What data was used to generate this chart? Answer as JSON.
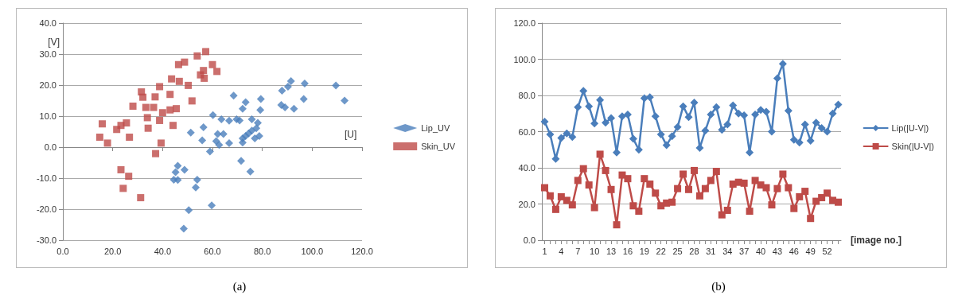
{
  "chart_data": [
    {
      "type": "scatter",
      "xlabel": "[U]",
      "ylabel": "[V]",
      "annotations": [
        "(a)"
      ],
      "xlim": [
        0,
        120
      ],
      "xticks": [
        {
          "value": 0,
          "label": "0.0"
        },
        {
          "value": 20,
          "label": "20.0"
        },
        {
          "value": 40,
          "label": "40.0"
        },
        {
          "value": 60,
          "label": "60.0"
        },
        {
          "value": 80,
          "label": "80.0"
        },
        {
          "value": 100,
          "label": "100.0"
        },
        {
          "value": 120,
          "label": "120.0"
        }
      ],
      "ylim": [
        -30,
        40
      ],
      "yticks": [
        {
          "value": -30,
          "label": "-30.0"
        },
        {
          "value": -20,
          "label": "-20.0"
        },
        {
          "value": -10,
          "label": "-10.0"
        },
        {
          "value": 0,
          "label": "0.0"
        },
        {
          "value": 10,
          "label": "10.0"
        },
        {
          "value": 20,
          "label": "20.0"
        },
        {
          "value": 30,
          "label": "30.0"
        },
        {
          "value": 40,
          "label": "40.0"
        }
      ],
      "grid": "y",
      "legend": "right",
      "series": [
        {
          "name": "Lip_UV",
          "color": "#4a7ebb",
          "marker": "diamond",
          "x": [
            68.5,
            73.3,
            72.1,
            79.4,
            79.2,
            87.9,
            90.3,
            91.5,
            97,
            96.6,
            87.6,
            89.1,
            92.7,
            109.5,
            113,
            60.2,
            56.4,
            51.3,
            55.9,
            62.1,
            61.5,
            62.7,
            59,
            64.4,
            63.6,
            66.7,
            66.7,
            69.7,
            70.9,
            75.8,
            78.2,
            72.1,
            73.3,
            74.5,
            75.8,
            77.6,
            78.8,
            77,
            72.1,
            71.5,
            75.2,
            46.1,
            45.2,
            48.8,
            46.1,
            44.5,
            53.9,
            53.3,
            59.7,
            50.5,
            48.5
          ],
          "values": [
            16.6,
            14.5,
            12.4,
            15.5,
            12,
            18.2,
            19.5,
            21.3,
            20.5,
            15.5,
            13.6,
            12.8,
            12.4,
            19.9,
            15,
            10.3,
            6.4,
            4.7,
            2.2,
            4.2,
            1.9,
            0.7,
            -1.4,
            4.2,
            9,
            8.5,
            1.3,
            9,
            8.6,
            9,
            7.8,
            2.8,
            3.6,
            4.4,
            5.3,
            6.1,
            3.6,
            2.8,
            1.5,
            -4.4,
            -7.9,
            -6,
            -8.1,
            -7.3,
            -10.6,
            -10.5,
            -10.5,
            -13,
            -18.8,
            -20.3,
            -26.3
          ]
        },
        {
          "name": "Skin_UV",
          "color": "#be4b48",
          "marker": "square",
          "x": [
            15.8,
            14.8,
            17.9,
            21.6,
            23.3,
            25.5,
            26.7,
            23.3,
            26.4,
            24.2,
            31.2,
            28.1,
            31.5,
            32.1,
            33.3,
            33.9,
            34.2,
            37,
            38.8,
            38.8,
            39.4,
            37.2,
            43,
            43.6,
            43,
            44.2,
            45.5,
            46.7,
            46.4,
            48.8,
            50.3,
            51.8,
            53.9,
            57.3,
            55.2,
            56.4,
            56.7,
            60,
            61.8,
            40,
            36.4
          ],
          "values": [
            7.5,
            3.2,
            1.3,
            5.7,
            7,
            7.8,
            3.2,
            -7.3,
            -9.4,
            -13.3,
            -16.3,
            13.2,
            17.8,
            16.1,
            12.8,
            9.5,
            6.1,
            16.2,
            19.5,
            8.6,
            1.3,
            -2.1,
            17,
            22,
            12,
            7,
            12.4,
            21.2,
            26.6,
            27.4,
            19.9,
            14.9,
            29.4,
            30.8,
            23.3,
            24.7,
            22.2,
            26.6,
            24.4,
            11.1,
            12.8
          ]
        }
      ]
    },
    {
      "type": "line",
      "xlabel": "[image no.]",
      "annotations": [
        "(b)"
      ],
      "categories": [
        "1",
        null,
        null,
        "4",
        null,
        null,
        "7",
        null,
        null,
        "10",
        null,
        null,
        "13",
        null,
        null,
        "16",
        null,
        null,
        "19",
        null,
        null,
        "22",
        null,
        null,
        "25",
        null,
        null,
        "28",
        null,
        null,
        "31",
        null,
        null,
        "34",
        null,
        null,
        "37",
        null,
        null,
        "40",
        null,
        null,
        "43",
        null,
        null,
        "46",
        null,
        null,
        "49",
        null,
        null,
        "52",
        null,
        null
      ],
      "ylim": [
        0,
        120
      ],
      "yticks": [
        {
          "value": 0,
          "label": "0.0"
        },
        {
          "value": 20,
          "label": "20.0"
        },
        {
          "value": 40,
          "label": "40.0"
        },
        {
          "value": 60,
          "label": "60.0"
        },
        {
          "value": 80,
          "label": "80.0"
        },
        {
          "value": 100,
          "label": "100.0"
        },
        {
          "value": 120,
          "label": "120.0"
        }
      ],
      "grid": "y",
      "legend": "right",
      "line_style": "solid",
      "series": [
        {
          "name": "Lip(|U-V|)",
          "color": "#4a7ebb",
          "marker": "diamond",
          "values": [
            65.5,
            58.5,
            45,
            56.5,
            59,
            57,
            73.5,
            82.5,
            74,
            64.5,
            77.5,
            65,
            67.5,
            48.5,
            68.5,
            69.5,
            56,
            50,
            78.5,
            79,
            68.5,
            58.5,
            52.5,
            57.5,
            62.5,
            74,
            68,
            76,
            51,
            60.5,
            69.5,
            73.5,
            61,
            64,
            74.5,
            70,
            69,
            48.5,
            69.5,
            72,
            71,
            60,
            89.5,
            97.5,
            71.5,
            55.5,
            54,
            64,
            55,
            65,
            62,
            60,
            70,
            75
          ]
        },
        {
          "name": "Skin(|U-V|)",
          "color": "#be4b48",
          "marker": "square",
          "values": [
            29,
            24.5,
            17,
            24,
            22,
            19.5,
            33,
            39.5,
            30.5,
            18,
            47.5,
            38.5,
            28,
            8.5,
            36,
            34,
            19,
            16,
            34,
            31,
            26,
            19,
            20.5,
            21,
            28.5,
            36.5,
            28,
            38.5,
            24.5,
            28.5,
            33,
            38,
            14,
            16.5,
            31,
            32,
            31.5,
            16,
            33,
            30.5,
            29,
            19.5,
            28.5,
            36.5,
            29,
            17.5,
            24,
            27,
            12,
            21.5,
            23.5,
            26,
            22,
            21
          ]
        }
      ]
    }
  ]
}
